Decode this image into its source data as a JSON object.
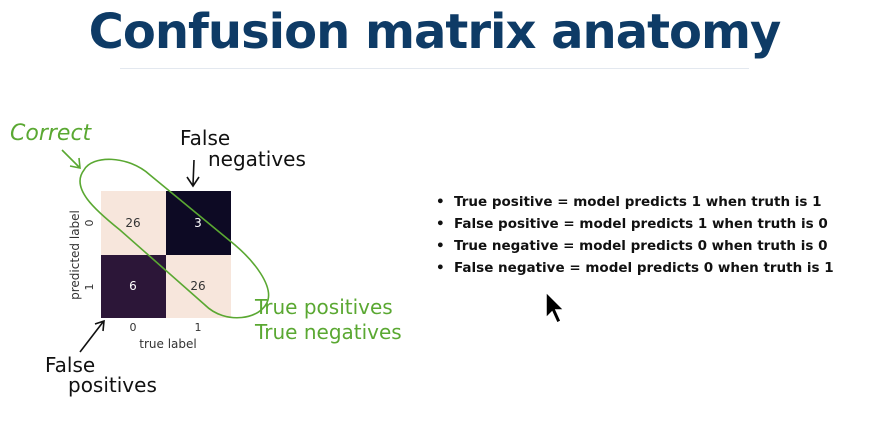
{
  "title": "Confusion matrix anatomy",
  "matrix": {
    "cells": [
      {
        "row": 0,
        "col": 0,
        "value": "26",
        "color": "#f7e6dc",
        "text_color": "#333333"
      },
      {
        "row": 0,
        "col": 1,
        "value": "3",
        "color": "#0d0a24",
        "text_color": "#ffffff"
      },
      {
        "row": 1,
        "col": 0,
        "value": "6",
        "color": "#2c1638",
        "text_color": "#ffffff"
      },
      {
        "row": 1,
        "col": 1,
        "value": "26",
        "color": "#f7e6dc",
        "text_color": "#333333"
      }
    ],
    "xlabel": "true label",
    "ylabel": "predicted label",
    "xticks": [
      "0",
      "1"
    ],
    "yticks": [
      "0",
      "1"
    ]
  },
  "annotations": {
    "correct": "Correct",
    "false_negatives_line1": "False",
    "false_negatives_line2": "negatives",
    "false_positives_line1": "False",
    "false_positives_line2": "positives",
    "true_positives": "True positives",
    "true_negatives": "True negatives",
    "green_color": "#5aa832",
    "ink_color": "#111111"
  },
  "bullets": [
    "True positive = model predicts 1 when truth is 1",
    "False positive = model predicts 1 when truth is 0",
    "True negative = model predicts 0 when truth is 0",
    "False negative = model predicts 0 when truth is 1"
  ]
}
